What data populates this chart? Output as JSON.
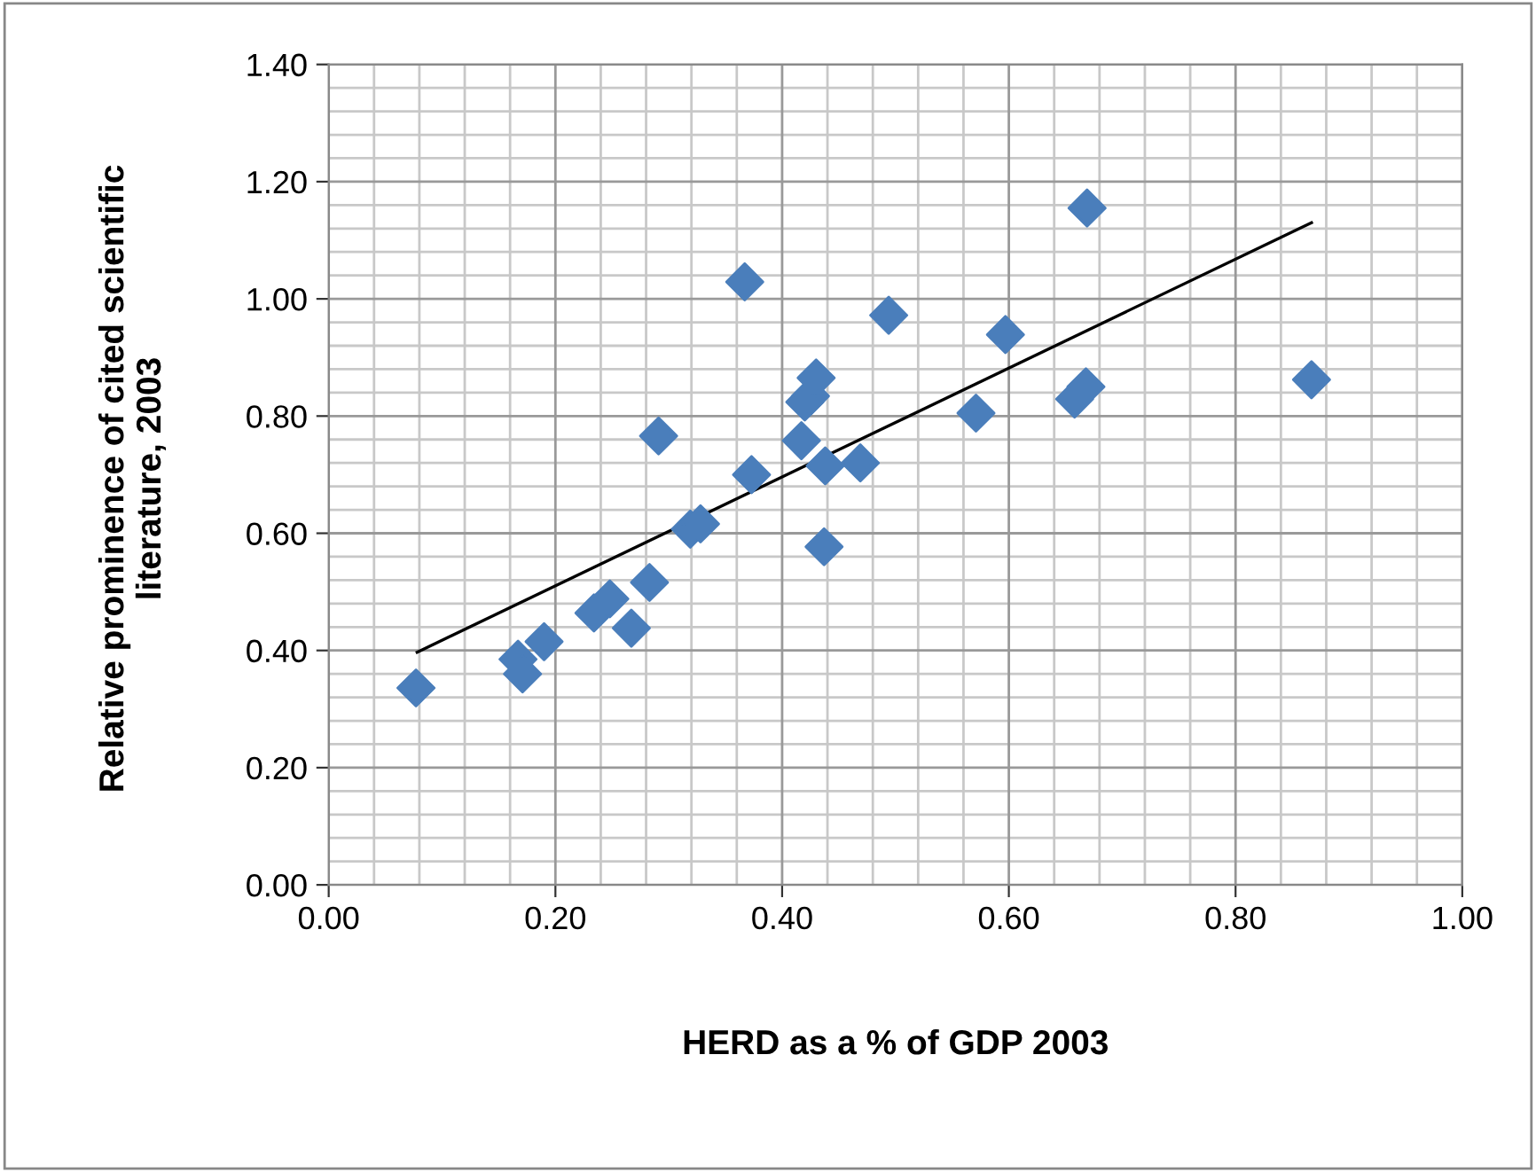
{
  "chart_data": {
    "type": "scatter",
    "xlabel": "HERD as a % of GDP 2003",
    "ylabel": "Relative prominence of cited scientific literature, 2003",
    "xlim": [
      0,
      1
    ],
    "ylim": [
      0,
      1.4
    ],
    "xticks": [
      {
        "value": 0,
        "label": "0.00"
      },
      {
        "value": 0.2,
        "label": "0.20"
      },
      {
        "value": 0.4,
        "label": "0.40"
      },
      {
        "value": 0.6,
        "label": "0.60"
      },
      {
        "value": 0.8,
        "label": "0.80"
      },
      {
        "value": 1,
        "label": "1.00"
      }
    ],
    "yticks": [
      {
        "value": 0,
        "label": "0.00"
      },
      {
        "value": 0.2,
        "label": "0.20"
      },
      {
        "value": 0.4,
        "label": "0.40"
      },
      {
        "value": 0.6,
        "label": "0.60"
      },
      {
        "value": 0.8,
        "label": "0.80"
      },
      {
        "value": 1.0,
        "label": "1.00"
      },
      {
        "value": 1.2,
        "label": "1.20"
      },
      {
        "value": 1.4,
        "label": "1.40"
      }
    ],
    "grid": true,
    "legend": false,
    "series": [
      {
        "color": "#4a7ebb",
        "marker": "diamond",
        "x": [
          0.077,
          0.167,
          0.171,
          0.19,
          0.234,
          0.248,
          0.267,
          0.283,
          0.291,
          0.319,
          0.328,
          0.367,
          0.373,
          0.417,
          0.42,
          0.425,
          0.43,
          0.437,
          0.438,
          0.469,
          0.494,
          0.571,
          0.597,
          0.658,
          0.668,
          0.669,
          0.867
        ],
        "values": [
          0.336,
          0.385,
          0.36,
          0.415,
          0.464,
          0.488,
          0.438,
          0.516,
          0.766,
          0.607,
          0.616,
          1.029,
          0.7,
          0.758,
          0.824,
          0.834,
          0.865,
          0.577,
          0.715,
          0.72,
          0.972,
          0.805,
          0.939,
          0.829,
          0.85,
          1.155,
          0.862
        ]
      },
      {
        "type": "line",
        "color": "#000000",
        "marker": "none",
        "line_style": "solid",
        "x": [
          0.078,
          0.867
        ],
        "values": [
          0.397,
          1.13
        ]
      }
    ]
  }
}
